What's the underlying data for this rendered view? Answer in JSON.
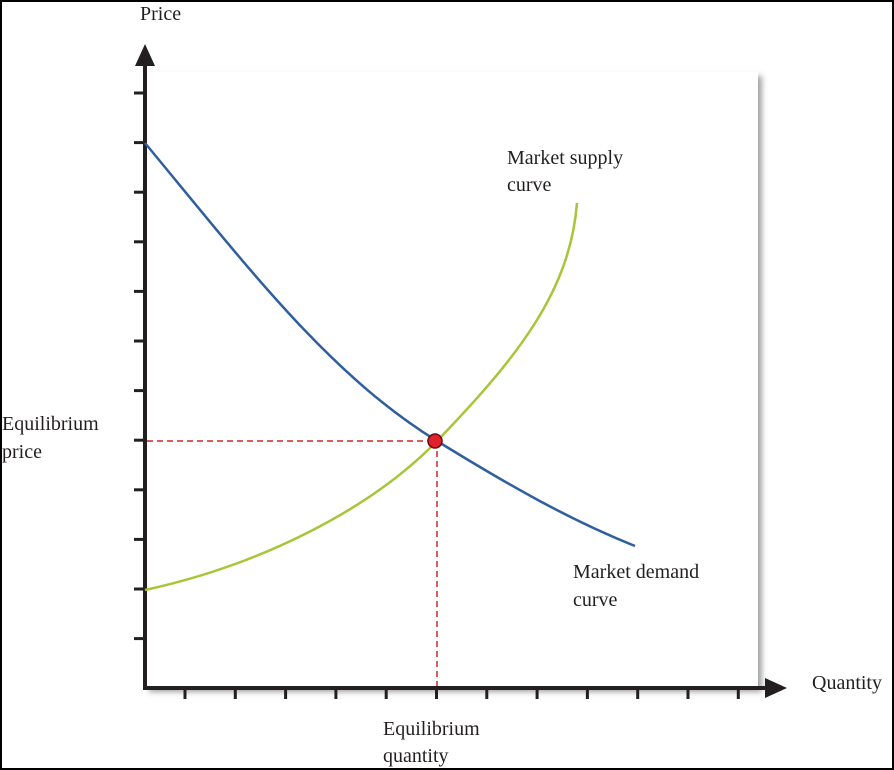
{
  "axes": {
    "y_label": "Price",
    "x_label": "Quantity"
  },
  "annotations": {
    "equilibrium_price": [
      "Equilibrium",
      "price"
    ],
    "equilibrium_quantity": [
      "Equilibrium",
      "quantity"
    ],
    "supply_curve": [
      "Market supply",
      "curve"
    ],
    "demand_curve": [
      "Market demand",
      "curve"
    ]
  }
}
